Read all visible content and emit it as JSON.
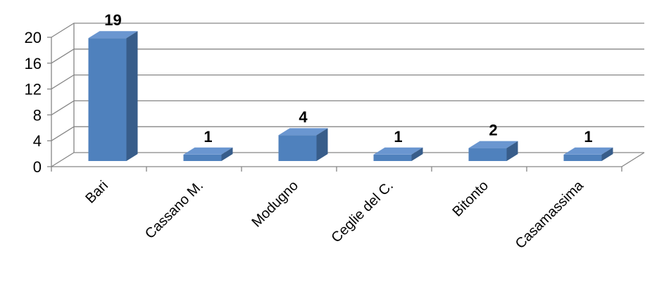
{
  "chart_data": {
    "type": "bar",
    "style": "3d-column",
    "categories": [
      "Bari",
      "Cassano M.",
      "Modugno",
      "Ceglie del C.",
      "Bitonto",
      "Casamassima"
    ],
    "values": [
      19,
      1,
      4,
      1,
      2,
      1
    ],
    "data_labels": [
      "19",
      "1",
      "4",
      "1",
      "2",
      "1"
    ],
    "ylim": [
      0,
      20
    ],
    "yticks": [
      0,
      4,
      8,
      12,
      16,
      20
    ],
    "grid": true,
    "legend": "none",
    "colors": {
      "bar_front": "#4f81bd",
      "bar_top": "#6a96d0",
      "bar_side": "#385d8a",
      "grid": "#868686"
    }
  }
}
